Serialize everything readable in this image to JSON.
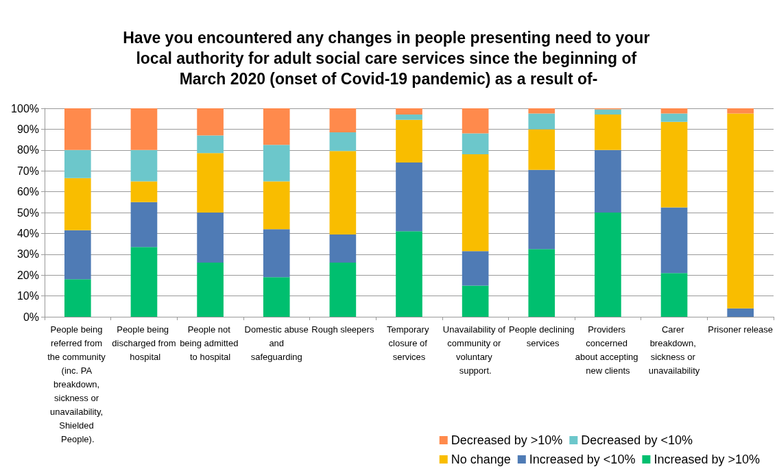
{
  "chart_data": {
    "type": "bar",
    "stacked": true,
    "title": "Have you encountered any changes in people presenting need to your local authority for adult social care services since the beginning of March 2020 (onset of Covid-19 pandemic) as a result of-",
    "categories": [
      "People being referred from the community (inc. PA breakdown, sickness or unavailability, Shielded People).",
      "People being discharged from hospital",
      "People not being admitted to hospital",
      "Domestic abuse and safeguarding",
      "Rough sleepers",
      "Temporary closure of services",
      "Unavailability of community or voluntary support.",
      "People declining services",
      "Providers concerned about accepting new clients",
      "Carer breakdown, sickness or unavailability",
      "Prisoner release"
    ],
    "series": [
      {
        "name": "Increased by >10%",
        "color": "#00bf6f",
        "values": [
          18,
          33.5,
          26,
          19,
          26,
          41,
          15,
          32.5,
          50,
          21,
          0
        ]
      },
      {
        "name": "Increased by <10%",
        "color": "#4f7bb5",
        "values": [
          23.5,
          21.5,
          24,
          23,
          13.5,
          33,
          16.5,
          38,
          30,
          31.5,
          4
        ]
      },
      {
        "name": "No change",
        "color": "#f9bd00",
        "values": [
          25,
          10,
          28.5,
          23,
          40,
          20.5,
          46.5,
          19.5,
          17,
          41,
          93.5
        ]
      },
      {
        "name": "Decreased by <10%",
        "color": "#6cc7cb",
        "values": [
          13.5,
          15,
          8.5,
          17.5,
          9,
          2.5,
          10,
          7.5,
          2.5,
          4,
          0
        ]
      },
      {
        "name": "Decreased by >10%",
        "color": "#ff8a4c",
        "values": [
          20,
          20,
          13,
          17.5,
          11.5,
          3,
          12,
          2.5,
          0.5,
          2.5,
          2.5
        ]
      }
    ],
    "ylim": [
      0,
      100
    ],
    "yticks": [
      {
        "value": 0,
        "label": "0%"
      },
      {
        "value": 10,
        "label": "10%"
      },
      {
        "value": 20,
        "label": "20%"
      },
      {
        "value": 30,
        "label": "30%"
      },
      {
        "value": 40,
        "label": "40%"
      },
      {
        "value": 50,
        "label": "50%"
      },
      {
        "value": 60,
        "label": "60%"
      },
      {
        "value": 70,
        "label": "70%"
      },
      {
        "value": 80,
        "label": "80%"
      },
      {
        "value": 90,
        "label": "90%"
      },
      {
        "value": 100,
        "label": "100%"
      }
    ],
    "grid": "y",
    "legend": "bottom right"
  }
}
